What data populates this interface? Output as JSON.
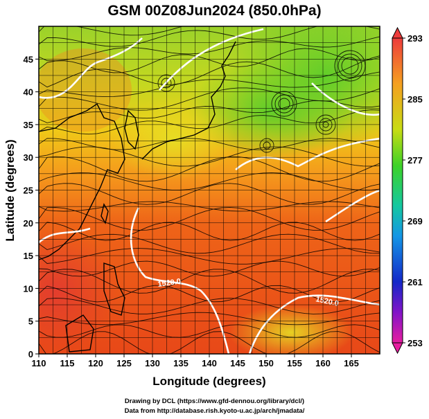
{
  "title": "GSM 00Z08Jun2024 (850.0hPa)",
  "x_axis": {
    "label": "Longitude (degrees)",
    "range": [
      110,
      170
    ],
    "ticks": [
      "110",
      "115",
      "120",
      "125",
      "130",
      "135",
      "140",
      "145",
      "150",
      "155",
      "160",
      "165"
    ]
  },
  "y_axis": {
    "label": "Latitude  (degrees)",
    "range": [
      0,
      50
    ],
    "ticks": [
      "0",
      "5",
      "10",
      "15",
      "20",
      "25",
      "30",
      "35",
      "40",
      "45"
    ]
  },
  "colorbar": {
    "min": 253,
    "max": 293,
    "ticks": [
      "293",
      "285",
      "277",
      "269",
      "261",
      "253"
    ]
  },
  "contour_labels": [
    "1520.0",
    "1520.0"
  ],
  "credits": [
    "Drawing by DCL (https://www.gfd-dennou.org/library/dcl/)",
    "Data from http://database.rish.kyoto-u.ac.jp/arch/jmadata/"
  ]
}
